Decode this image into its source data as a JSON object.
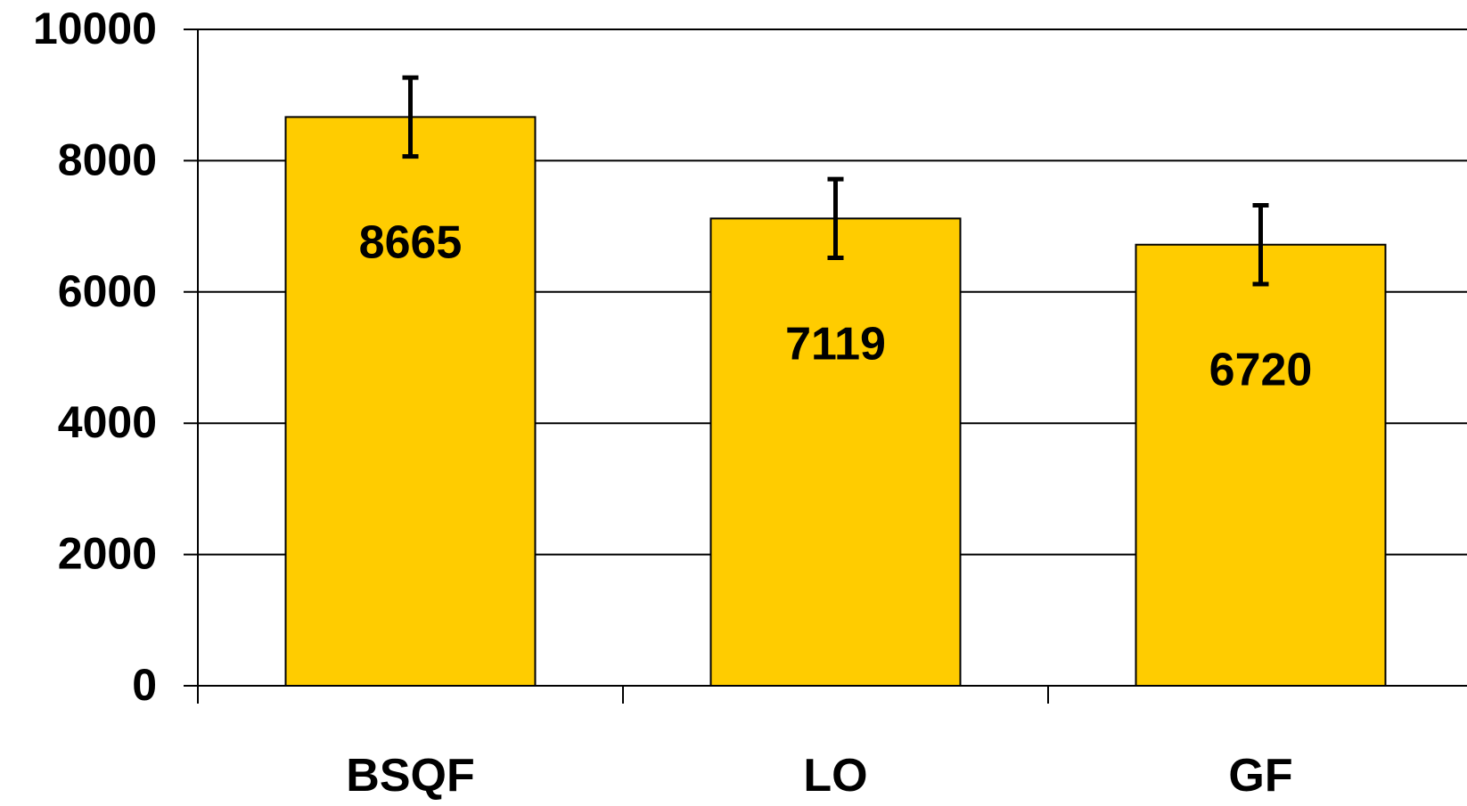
{
  "chart_data": {
    "type": "bar",
    "title": "",
    "xlabel": "",
    "ylabel": "",
    "categories": [
      "BSQF",
      "LO",
      "GF"
    ],
    "values": [
      8665,
      7119,
      6720
    ],
    "data_labels": [
      "8665",
      "7119",
      "6720"
    ],
    "error_bars": [
      {
        "low": 8065,
        "high": 9265
      },
      {
        "low": 6519,
        "high": 7719
      },
      {
        "low": 6120,
        "high": 7320
      }
    ],
    "ylim": [
      0,
      10000
    ],
    "yticks": [
      "0",
      "2000",
      "4000",
      "6000",
      "8000",
      "10000"
    ],
    "grid": true,
    "legend": "none",
    "colors": {
      "bar": "#FFCC00",
      "bar_outline": "#000000",
      "grid": "#000000",
      "error_bar": "#000000"
    }
  }
}
